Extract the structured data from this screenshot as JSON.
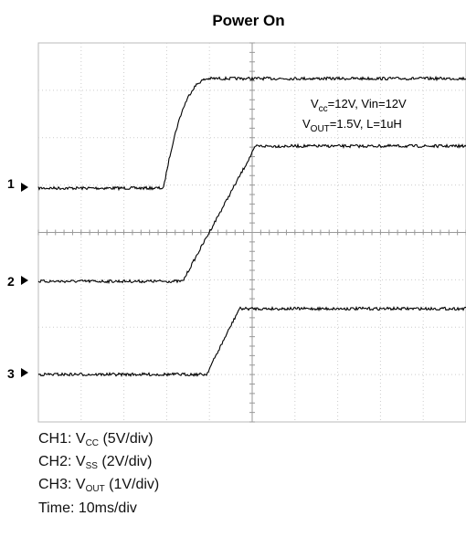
{
  "title": "Power On",
  "channel_markers": [
    "1",
    "2",
    "3"
  ],
  "annotation": [
    {
      "main": "V",
      "sub": "cc",
      "rest": "=12V, Vin=12V"
    },
    {
      "main": "V",
      "sub": "OUT",
      "rest": "=1.5V, L=1uH"
    }
  ],
  "captions": [
    {
      "main": "CH1: V",
      "sub": "CC",
      "rest": " (5V/div)"
    },
    {
      "main": "CH2: V",
      "sub": "SS",
      "rest": " (2V/div)"
    },
    {
      "main": "CH3: V",
      "sub": "OUT",
      "rest": " (1V/div)"
    }
  ],
  "time_caption": "Time: 10ms/div"
}
